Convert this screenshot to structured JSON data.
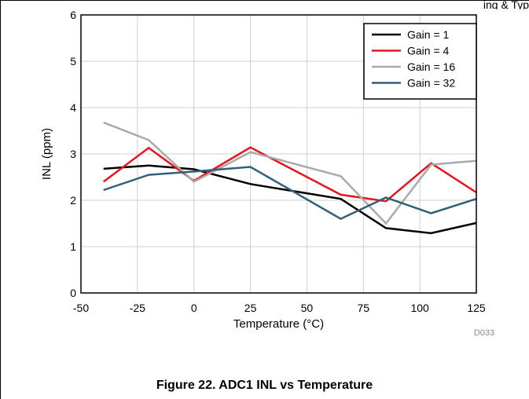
{
  "page": {
    "header_fragment": "ing & Typ",
    "caption": "Figure 22. ADC1 INL vs Temperature"
  },
  "chart_data": {
    "type": "line",
    "xlabel": "Temperature (°C)",
    "ylabel": "INL (ppm)",
    "xlim": [
      -50,
      125
    ],
    "ylim": [
      0,
      6
    ],
    "xticks": [
      -50,
      -25,
      0,
      25,
      50,
      75,
      100,
      125
    ],
    "yticks": [
      0,
      1,
      2,
      3,
      4,
      5,
      6
    ],
    "grid": true,
    "legend_position": "top-right",
    "figure_id": "D033",
    "series": [
      {
        "name": "Gain = 1",
        "color": "#000000",
        "x": [
          -40,
          -20,
          0,
          25,
          65,
          85,
          105,
          125
        ],
        "y": [
          2.68,
          2.75,
          2.67,
          2.35,
          2.03,
          1.4,
          1.29,
          1.51
        ]
      },
      {
        "name": "Gain = 4",
        "color": "#e8141b",
        "x": [
          -40,
          -20,
          0,
          25,
          65,
          85,
          105,
          125
        ],
        "y": [
          2.4,
          3.13,
          2.42,
          3.14,
          2.12,
          1.98,
          2.8,
          2.17
        ]
      },
      {
        "name": "Gain = 16",
        "color": "#aaaaaa",
        "x": [
          -40,
          -20,
          0,
          25,
          65,
          85,
          105,
          125
        ],
        "y": [
          3.68,
          3.3,
          2.4,
          3.04,
          2.52,
          1.5,
          2.77,
          2.85
        ]
      },
      {
        "name": "Gain = 32",
        "color": "#30607a",
        "x": [
          -40,
          -20,
          0,
          25,
          65,
          85,
          105,
          125
        ],
        "y": [
          2.22,
          2.55,
          2.62,
          2.72,
          1.6,
          2.06,
          1.72,
          2.03
        ]
      }
    ]
  }
}
